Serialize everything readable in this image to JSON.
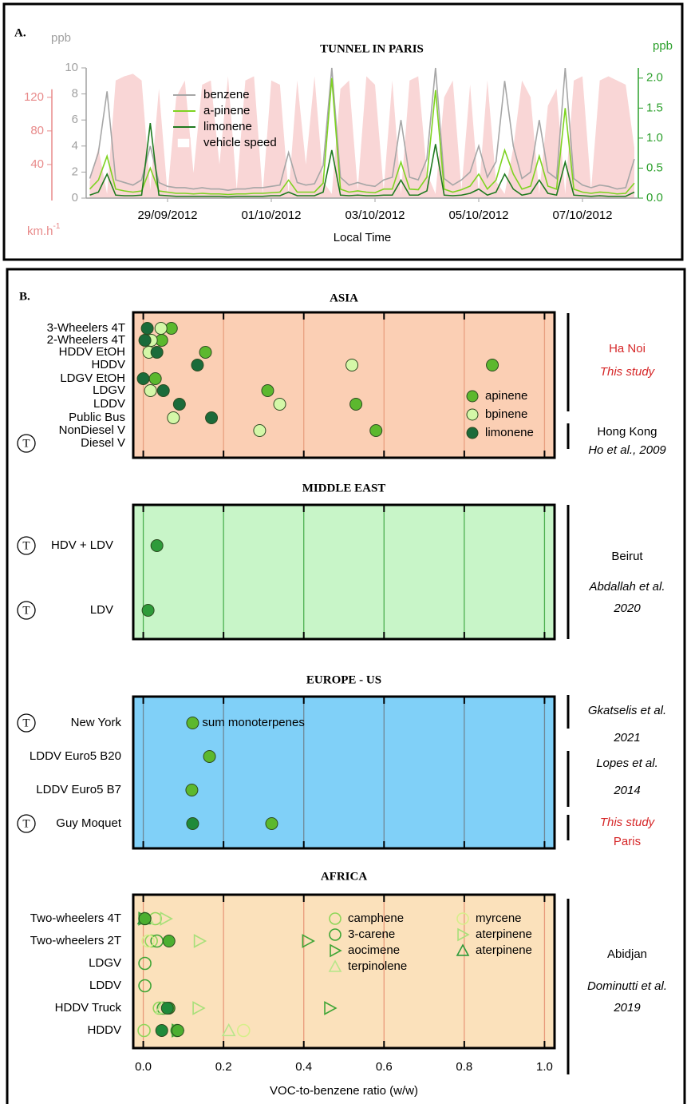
{
  "chart_data": [
    {
      "type": "line",
      "label": "A.",
      "title": "TUNNEL IN PARIS",
      "ylabel": "ppb",
      "y2label": "ppb",
      "y3label": "km.h",
      "y3label_sup": "-1",
      "xlabel": "Local Time",
      "categories": [
        null,
        null,
        null,
        null,
        null,
        null,
        null,
        null,
        null,
        "29/09/2012",
        null,
        null,
        null,
        null,
        null,
        null,
        null,
        null,
        null,
        null,
        null,
        "01/10/2012",
        null,
        null,
        null,
        null,
        null,
        null,
        null,
        null,
        null,
        null,
        null,
        "03/10/2012",
        null,
        null,
        null,
        null,
        null,
        null,
        null,
        null,
        null,
        null,
        null,
        "05/10/2012",
        null,
        null,
        null,
        null,
        null,
        null,
        null,
        null,
        null,
        null,
        null,
        "07/10/2012",
        null,
        null,
        null,
        null,
        null,
        null
      ],
      "ylim": [
        0,
        10
      ],
      "yticks": [
        0,
        2,
        4,
        6,
        8,
        10
      ],
      "y2lim": [
        0,
        2.17
      ],
      "y2ticks": [
        {
          "value": 0,
          "label": "0.0"
        },
        0.5,
        {
          "value": 1,
          "label": "1.0"
        },
        1.5,
        {
          "value": 2,
          "label": "2.0"
        }
      ],
      "y3lim": [
        0,
        155
      ],
      "y3ticks": [
        40,
        80,
        120
      ],
      "axis_colors": {
        "y": "#a0a0a0",
        "y2": "#2ca02c",
        "y3": "#e88a8a"
      },
      "series": [
        {
          "name": "vehicle speed",
          "color": "#f9d6d6",
          "axis": "y3",
          "kind": "area",
          "values": [
            20,
            60,
            5,
            140,
            145,
            148,
            140,
            10,
            130,
            5,
            120,
            140,
            30,
            135,
            140,
            40,
            145,
            10,
            140,
            145,
            5,
            140,
            135,
            5,
            140,
            40,
            145,
            20,
            5,
            130,
            140,
            10,
            145,
            135,
            10,
            140,
            5,
            140,
            145,
            30,
            5,
            120,
            140,
            10,
            135,
            5,
            140,
            20,
            5,
            60,
            140,
            120,
            5,
            110,
            130,
            5,
            140,
            145,
            10,
            140,
            145,
            140,
            135,
            60
          ]
        },
        {
          "name": "benzene",
          "color": "#a6a6a6",
          "axis": "y",
          "kind": "line",
          "values": [
            1.5,
            3.5,
            8.2,
            1.4,
            1.2,
            1.0,
            1.4,
            4.0,
            1.2,
            0.9,
            0.8,
            0.8,
            0.7,
            0.8,
            0.7,
            0.7,
            0.6,
            0.7,
            0.7,
            0.8,
            0.8,
            0.9,
            1.0,
            3.5,
            1.2,
            1.0,
            1.1,
            2.5,
            10.0,
            1.6,
            1.0,
            1.2,
            1.0,
            0.9,
            1.4,
            1.6,
            6.0,
            1.6,
            1.4,
            3.0,
            10.0,
            1.5,
            1.0,
            1.4,
            2.0,
            4.0,
            1.6,
            2.8,
            9.0,
            4.0,
            1.5,
            2.0,
            6.0,
            2.0,
            1.5,
            10.0,
            1.5,
            1.0,
            0.8,
            1.0,
            0.9,
            0.7,
            0.8,
            3.0
          ]
        },
        {
          "name": "a-pinene",
          "color": "#7ed321",
          "axis": "y2",
          "kind": "line",
          "values": [
            0.15,
            0.3,
            0.7,
            0.15,
            0.12,
            0.1,
            0.12,
            0.5,
            0.12,
            0.1,
            0.08,
            0.08,
            0.07,
            0.08,
            0.07,
            0.07,
            0.06,
            0.07,
            0.07,
            0.08,
            0.08,
            0.09,
            0.1,
            0.3,
            0.1,
            0.1,
            0.1,
            0.25,
            2.0,
            0.15,
            0.1,
            0.12,
            0.1,
            0.09,
            0.15,
            0.15,
            0.6,
            0.15,
            0.14,
            0.35,
            1.8,
            0.15,
            0.1,
            0.14,
            0.2,
            0.4,
            0.15,
            0.3,
            0.8,
            0.4,
            0.15,
            0.2,
            0.7,
            0.2,
            0.15,
            1.5,
            0.15,
            0.1,
            0.08,
            0.1,
            0.09,
            0.07,
            0.08,
            0.25
          ]
        },
        {
          "name": "limonene",
          "color": "#1f7a1f",
          "axis": "y2",
          "kind": "line",
          "values": [
            0.05,
            0.1,
            0.4,
            0.05,
            0.04,
            0.04,
            0.05,
            1.25,
            0.05,
            0.04,
            0.03,
            0.03,
            0.03,
            0.03,
            0.03,
            0.03,
            0.02,
            0.03,
            0.03,
            0.03,
            0.03,
            0.04,
            0.04,
            0.1,
            0.04,
            0.04,
            0.04,
            0.1,
            0.8,
            0.05,
            0.04,
            0.05,
            0.04,
            0.04,
            0.05,
            0.05,
            0.3,
            0.05,
            0.05,
            0.12,
            0.9,
            0.05,
            0.04,
            0.05,
            0.08,
            0.15,
            0.05,
            0.1,
            0.4,
            0.15,
            0.05,
            0.08,
            0.3,
            0.08,
            0.05,
            0.6,
            0.05,
            0.04,
            0.03,
            0.04,
            0.03,
            0.03,
            0.03,
            0.1
          ]
        }
      ]
    },
    {
      "type": "dot",
      "label": "B.",
      "title": "ASIA",
      "categories": [
        "3-Wheelers 4T",
        "2-Wheelers 4T",
        "HDDV EtOH",
        "HDDV",
        "LDGV EtOH",
        "LDGV",
        "LDDV",
        "Public Bus",
        "NonDiesel V",
        "Diesel V"
      ],
      "tunnel": [
        false,
        false,
        false,
        false,
        false,
        false,
        false,
        false,
        false,
        true
      ],
      "tunnel_label": "T",
      "xlim": [
        -0.025,
        1.025
      ],
      "xticks": [
        {
          "value": 0,
          "label": "0.0"
        },
        0.2,
        0.4,
        0.6,
        0.8,
        {
          "value": 1,
          "label": "1.0"
        }
      ],
      "background": "#fbcfb4",
      "grid_color": "#e8a080",
      "series": [
        {
          "name": "apinene",
          "color": "#5cb82e",
          "marker": "circle",
          "filled": true,
          "values": [
            0.07,
            0.046,
            0.155,
            0.87,
            0.03,
            0.31,
            0.53,
            null,
            0.58,
            null
          ]
        },
        {
          "name": "bpinene",
          "color": "#d4f7a8",
          "marker": "circle",
          "filled": true,
          "values": [
            0.044,
            0.02,
            0.014,
            0.52,
            null,
            0.018,
            0.34,
            0.075,
            0.29,
            null
          ]
        },
        {
          "name": "limonene",
          "color": "#1b6b3a",
          "marker": "circle",
          "filled": true,
          "values": [
            0.01,
            0.004,
            0.034,
            0.135,
            0.0,
            0.05,
            0.09,
            0.17,
            null,
            null
          ]
        }
      ],
      "notes": [
        {
          "text": "Ha Noi",
          "color": "#d62728",
          "italic": false
        },
        {
          "text": "This study",
          "color": "#d62728",
          "italic": true
        },
        {
          "text": "Hong Kong",
          "color": "#000000",
          "italic": false
        },
        {
          "text": "Ho et al., 2009",
          "color": "#000000",
          "italic": true
        }
      ]
    },
    {
      "type": "dot",
      "title": "MIDDLE EAST",
      "categories": [
        "HDV + LDV",
        "LDV"
      ],
      "tunnel": [
        true,
        true
      ],
      "tunnel_label": "T",
      "xlim": [
        -0.025,
        1.025
      ],
      "xticks": [
        {
          "value": 0,
          "label": "0.0"
        },
        0.2,
        0.4,
        0.6,
        0.8,
        {
          "value": 1,
          "label": "1.0"
        }
      ],
      "background": "#c8f5c8",
      "grid_color": "#4caf50",
      "series": [
        {
          "color": "#2e9b3a",
          "marker": "circle",
          "filled": true,
          "values": [
            0.034,
            0.012
          ]
        }
      ],
      "notes": [
        {
          "text": "Beirut",
          "color": "#000000",
          "italic": false
        },
        {
          "text": "Abdallah et al.",
          "color": "#000000",
          "italic": true
        },
        {
          "text": "2020",
          "color": "#000000",
          "italic": true
        }
      ]
    },
    {
      "type": "dot",
      "title": "EUROPE - US",
      "categories": [
        "New York",
        "LDDV Euro5 B20",
        "LDDV Euro5 B7",
        "Guy Moquet"
      ],
      "tunnel": [
        true,
        false,
        false,
        true
      ],
      "tunnel_label": "T",
      "xlim": [
        -0.025,
        1.025
      ],
      "xticks": [
        {
          "value": 0,
          "label": "0.0"
        },
        0.2,
        0.4,
        0.6,
        0.8,
        {
          "value": 1,
          "label": "1.0"
        }
      ],
      "background": "#80d0f8",
      "grid_color": "#6f8796",
      "annotation": "sum monoterpenes",
      "series": [
        {
          "color": "#5cb82e",
          "marker": "circle",
          "filled": true,
          "values": [
            0.123,
            0.165,
            0.121,
            0.32
          ]
        },
        {
          "color": "#1f8a3a",
          "marker": "circle",
          "filled": true,
          "values": [
            null,
            null,
            null,
            0.123
          ]
        }
      ],
      "notes": [
        {
          "text": "Gkatselis et al.",
          "color": "#000000",
          "italic": true
        },
        {
          "text": "2021",
          "color": "#000000",
          "italic": true
        },
        {
          "text": "Lopes et al.",
          "color": "#000000",
          "italic": true
        },
        {
          "text": "2014",
          "color": "#000000",
          "italic": true
        },
        {
          "text": "This study",
          "color": "#d62728",
          "italic": true
        },
        {
          "text": "Paris",
          "color": "#d62728",
          "italic": false
        }
      ]
    },
    {
      "type": "dot",
      "title": "AFRICA",
      "categories": [
        "Two-wheelers 4T",
        "Two-wheelers 2T",
        "LDGV",
        "LDDV",
        "HDDV Truck",
        "HDDV"
      ],
      "tunnel": [
        false,
        false,
        false,
        false,
        false,
        false
      ],
      "tunnel_label": "T",
      "xlim": [
        -0.025,
        1.025
      ],
      "xticks": [
        {
          "value": 0,
          "label": "0.0"
        },
        0.2,
        0.4,
        0.6,
        0.8,
        {
          "value": 1,
          "label": "1.0"
        }
      ],
      "xlabel": "VOC-to-benzene ratio (w/w)",
      "background": "#fbe1bb",
      "grid_color": "#e89a7a",
      "series": [
        {
          "name": "camphene",
          "color": "#8fd65a",
          "marker": "circle",
          "filled": false,
          "values": [
            0.03,
            0.02,
            null,
            null,
            0.04,
            0.002
          ]
        },
        {
          "name": "3-carene",
          "color": "#3fa535",
          "marker": "circle",
          "filled": false,
          "values": [
            0.004,
            0.034,
            0.004,
            0.004,
            0.05,
            0.084
          ]
        },
        {
          "name": "aocimene",
          "color": "#3fa535",
          "marker": "tri-right",
          "filled": false,
          "values": [
            0.002,
            0.41,
            null,
            null,
            0.465,
            0.085
          ]
        },
        {
          "name": "terpinolene",
          "color": "#b8e68a",
          "marker": "tri-up",
          "filled": false,
          "values": [
            0.01,
            null,
            null,
            null,
            0.046,
            0.213
          ]
        },
        {
          "name": "myrcene",
          "color": "#d6ef8a",
          "marker": "circle",
          "filled": false,
          "values": [
            null,
            0.012,
            null,
            null,
            null,
            0.25
          ]
        },
        {
          "name": "aterpinene",
          "color": "#a8e07a",
          "marker": "tri-right",
          "filled": false,
          "values": [
            0.056,
            0.14,
            null,
            null,
            0.137,
            null
          ]
        },
        {
          "name": "aterpinene",
          "color": "#2e9b3a",
          "marker": "tri-up",
          "filled": false,
          "values": [
            0.002,
            null,
            null,
            null,
            null,
            null
          ]
        },
        {
          "color": "#4caf30",
          "marker": "circle",
          "filled": true,
          "values": [
            0.004,
            0.064,
            null,
            null,
            0.064,
            0.086
          ]
        },
        {
          "color": "#1f8a3a",
          "marker": "circle",
          "filled": true,
          "values": [
            null,
            null,
            null,
            null,
            0.06,
            0.046
          ]
        }
      ],
      "notes": [
        {
          "text": "Abidjan",
          "color": "#000000",
          "italic": false
        },
        {
          "text": "Dominutti et al.",
          "color": "#000000",
          "italic": true
        },
        {
          "text": "2019",
          "color": "#000000",
          "italic": true
        }
      ]
    }
  ]
}
